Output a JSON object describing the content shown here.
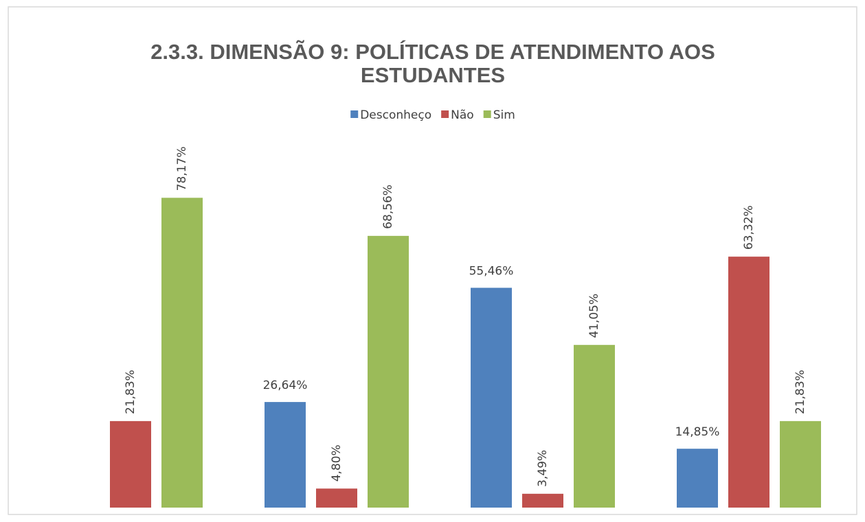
{
  "chart_data": {
    "type": "bar",
    "title": [
      "2.3.3. DIMENSÃO 9: POLÍTICAS DE ATENDIMENTO AOS",
      "ESTUDANTES"
    ],
    "categories": [
      null,
      null,
      null,
      null
    ],
    "series": [
      {
        "name": "Desconheço",
        "color": "#4f81bd",
        "label_rotation": 0,
        "values": [
          null,
          26.64,
          55.46,
          14.85
        ],
        "value_labels": [
          null,
          "26,64%",
          "55,46%",
          "14,85%"
        ]
      },
      {
        "name": "Não",
        "color": "#c0504d",
        "label_rotation": -90,
        "values": [
          21.83,
          4.8,
          3.49,
          63.32
        ],
        "value_labels": [
          "21,83%",
          "4,80%",
          "3,49%",
          "63,32%"
        ]
      },
      {
        "name": "Sim",
        "color": "#9bbb59",
        "label_rotation": -90,
        "values": [
          78.17,
          68.56,
          41.05,
          21.83
        ],
        "value_labels": [
          "78,17%",
          "68,56%",
          "41,05%",
          "21,83%"
        ]
      }
    ],
    "ylim": [
      0,
      90
    ],
    "legend": "top"
  }
}
